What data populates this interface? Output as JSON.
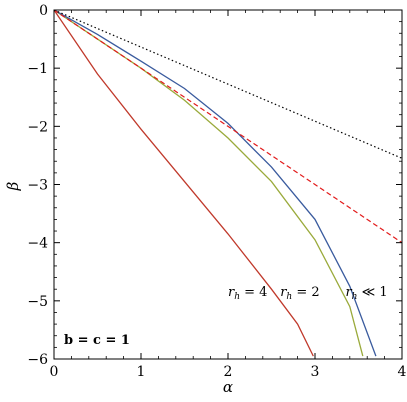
{
  "chart_data": {
    "type": "line",
    "xlabel": "α",
    "ylabel": "β",
    "xlim": [
      0,
      4
    ],
    "ylim": [
      -6,
      0
    ],
    "x_ticks": [
      "0",
      "1",
      "2",
      "3",
      "4"
    ],
    "y_ticks": [
      "0",
      "−1",
      "−2",
      "−3",
      "−4",
      "−5",
      "−6"
    ],
    "grid": false,
    "series": [
      {
        "color": "#c0392b",
        "style": "solid",
        "points": [
          [
            0,
            0
          ],
          [
            0.5,
            -1.1
          ],
          [
            1,
            -2.05
          ],
          [
            1.5,
            -2.95
          ],
          [
            2,
            -3.85
          ],
          [
            2.5,
            -4.8
          ],
          [
            2.8,
            -5.4
          ],
          [
            2.98,
            -5.95
          ]
        ]
      },
      {
        "color": "#9aaa3b",
        "style": "solid",
        "points": [
          [
            0,
            0
          ],
          [
            0.5,
            -0.5
          ],
          [
            1,
            -1.0
          ],
          [
            1.5,
            -1.55
          ],
          [
            2,
            -2.2
          ],
          [
            2.5,
            -2.95
          ],
          [
            3,
            -3.95
          ],
          [
            3.4,
            -5.1
          ],
          [
            3.55,
            -5.95
          ]
        ]
      },
      {
        "color": "#3a5b9e",
        "style": "solid",
        "points": [
          [
            0,
            0
          ],
          [
            0.5,
            -0.42
          ],
          [
            1,
            -0.88
          ],
          [
            1.5,
            -1.35
          ],
          [
            2,
            -1.95
          ],
          [
            2.5,
            -2.7
          ],
          [
            3,
            -3.6
          ],
          [
            3.4,
            -4.75
          ],
          [
            3.7,
            -5.95
          ]
        ]
      },
      {
        "color": "#e21b1b",
        "style": "dashed",
        "points": [
          [
            0,
            0
          ],
          [
            4,
            -4
          ]
        ]
      },
      {
        "color": "#000000",
        "style": "dotted",
        "points": [
          [
            0,
            0
          ],
          [
            4,
            -2.55
          ]
        ]
      }
    ],
    "annotations": [
      {
        "base": "r",
        "sub": "h",
        "rest": " = 4",
        "x": 2.0,
        "y": -4.92
      },
      {
        "base": "r",
        "sub": "h",
        "rest": " = 2",
        "x": 2.6,
        "y": -4.92
      },
      {
        "base": "r",
        "sub": "h",
        "rest": " ≪ 1",
        "x": 3.35,
        "y": -4.92
      }
    ],
    "inset_label": "b = c = 1"
  }
}
